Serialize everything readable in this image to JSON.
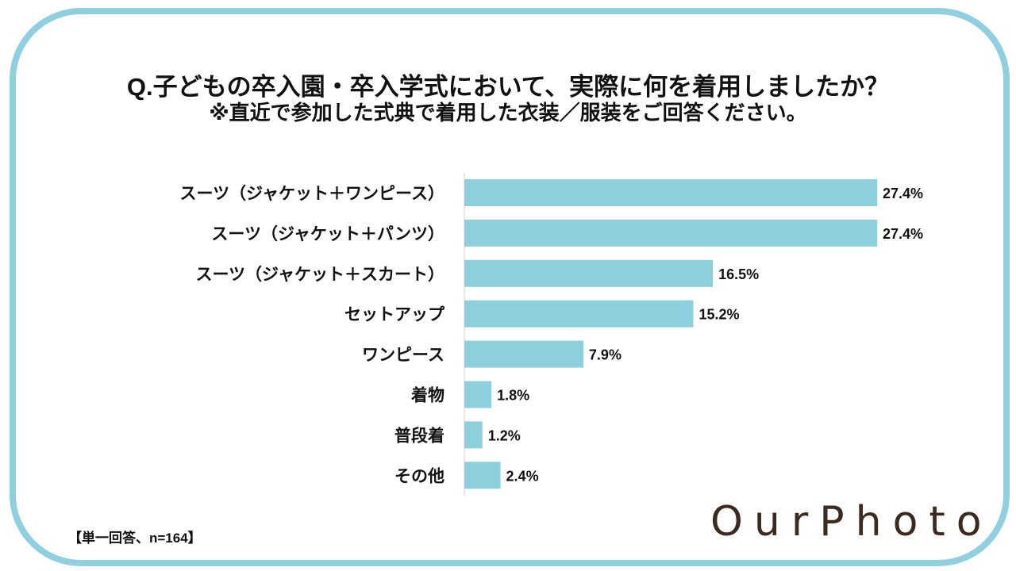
{
  "chart_data": {
    "type": "bar",
    "orientation": "horizontal",
    "title": "Q.子どもの卒入園・卒入学式において、実際に何を着用しましたか？",
    "subtitle": "※直近で参加した式典で着用した衣装／服装をご回答ください。",
    "categories": [
      "スーツ（ジャケット＋ワンピース）",
      "スーツ（ジャケット＋パンツ）",
      "スーツ（ジャケット＋スカート）",
      "セットアップ",
      "ワンピース",
      "着物",
      "普段着",
      "その他"
    ],
    "values": [
      27.4,
      27.4,
      16.5,
      15.2,
      7.9,
      1.8,
      1.2,
      2.4
    ],
    "data_labels": [
      "27.4%",
      "27.4%",
      "16.5%",
      "15.2%",
      "7.9%",
      "1.8%",
      "1.2%",
      "2.4%"
    ],
    "unit": "%",
    "grid": false,
    "bar_color": "#8ecfdd",
    "frame_color": "#8fcfdf"
  },
  "footer": "【単一回答、n=164】",
  "logo": "OurPhoto"
}
